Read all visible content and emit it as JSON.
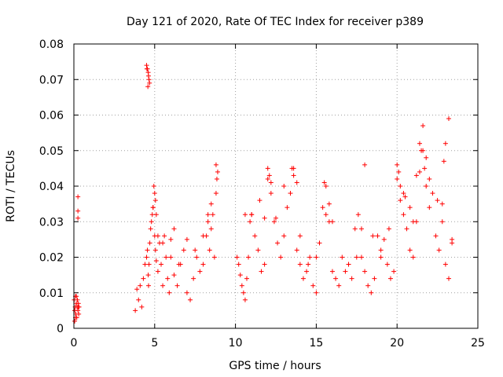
{
  "chart_data": {
    "type": "scatter",
    "title": "Day 121 of 2020, Rate Of TEC Index for receiver p389",
    "xlabel": "GPS time / hours",
    "ylabel": "ROTI / TECUs",
    "xlim": [
      0,
      25
    ],
    "ylim": [
      0,
      0.08
    ],
    "x_ticks": [
      0,
      5,
      10,
      15,
      20,
      25
    ],
    "y_ticks": [
      0,
      0.01,
      0.02,
      0.03,
      0.04,
      0.05,
      0.06,
      0.07,
      0.08
    ],
    "x_tick_labels": [
      "0",
      "5",
      "10",
      "15",
      "20",
      "25"
    ],
    "y_tick_labels": [
      "0",
      "0.01",
      "0.02",
      "0.03",
      "0.04",
      "0.05",
      "0.06",
      "0.07",
      "0.08"
    ],
    "grid": true,
    "marker": "+",
    "color": "#ff0000",
    "series": [
      {
        "x": [
          0.02,
          0.05,
          0.08,
          0.1,
          0.12,
          0.15,
          0.18,
          0.2,
          0.22,
          0.25,
          0.28,
          0.3,
          0.32,
          0.05,
          0.1,
          0.15,
          0.2,
          0.25,
          0.25,
          0.25,
          0.28,
          3.8,
          3.9,
          4.0,
          4.1,
          4.2,
          4.3,
          4.4,
          4.5,
          4.55,
          4.6,
          4.62,
          4.65,
          4.7,
          4.75,
          4.8,
          4.85,
          4.9,
          5.0,
          5.05,
          5.1,
          5.2,
          5.3,
          5.4,
          5.5,
          5.6,
          5.7,
          5.8,
          5.9,
          6.0,
          6.2,
          6.4,
          6.6,
          6.8,
          7.0,
          7.2,
          7.4,
          7.6,
          7.8,
          8.0,
          8.2,
          8.3,
          8.4,
          8.5,
          8.6,
          8.7,
          8.8,
          8.9,
          4.5,
          4.55,
          4.6,
          4.62,
          4.65,
          4.68,
          4.58,
          4.52,
          4.95,
          5.0,
          5.05,
          4.9,
          5.1,
          5.2,
          5.5,
          6.0,
          6.2,
          6.5,
          7.0,
          7.5,
          8.0,
          8.3,
          8.5,
          8.8,
          8.85,
          10.1,
          10.2,
          10.3,
          10.4,
          10.5,
          10.6,
          10.7,
          10.8,
          10.9,
          11.0,
          11.2,
          11.4,
          11.6,
          11.8,
          12.0,
          12.2,
          12.4,
          12.6,
          12.8,
          13.0,
          13.2,
          13.4,
          13.6,
          13.8,
          14.0,
          14.2,
          14.4,
          14.6,
          14.8,
          15.0,
          15.2,
          15.4,
          15.6,
          15.8,
          16.0,
          16.2,
          16.4,
          16.6,
          16.8,
          17.0,
          17.2,
          17.4,
          17.6,
          17.8,
          18.0,
          18.2,
          18.4,
          18.6,
          18.8,
          19.0,
          19.2,
          19.4,
          19.6,
          19.8,
          20.0,
          20.2,
          20.4,
          20.6,
          20.8,
          21.0,
          21.2,
          21.4,
          21.6,
          21.8,
          22.0,
          22.2,
          22.4,
          22.6,
          22.8,
          23.0,
          23.2,
          23.4,
          10.6,
          11.0,
          11.5,
          11.8,
          12.0,
          12.1,
          12.2,
          12.5,
          13.0,
          13.5,
          13.6,
          13.8,
          14.0,
          14.5,
          15.0,
          15.5,
          15.6,
          15.8,
          16.0,
          17.0,
          17.5,
          17.8,
          18.0,
          18.5,
          19.0,
          19.5,
          20.0,
          20.1,
          20.2,
          20.4,
          20.5,
          20.8,
          21.0,
          21.2,
          21.4,
          21.5,
          21.6,
          21.7,
          21.8,
          22.0,
          22.5,
          22.8,
          22.9,
          23.0,
          23.2,
          23.4
        ],
        "y": [
          0.008,
          0.005,
          0.006,
          0.009,
          0.004,
          0.007,
          0.003,
          0.006,
          0.008,
          0.005,
          0.007,
          0.004,
          0.006,
          0.002,
          0.003,
          0.009,
          0.006,
          0.031,
          0.033,
          0.037,
          0.006,
          0.005,
          0.011,
          0.008,
          0.012,
          0.006,
          0.014,
          0.018,
          0.02,
          0.022,
          0.015,
          0.012,
          0.018,
          0.024,
          0.028,
          0.03,
          0.032,
          0.034,
          0.026,
          0.022,
          0.019,
          0.016,
          0.024,
          0.018,
          0.012,
          0.026,
          0.02,
          0.014,
          0.01,
          0.025,
          0.015,
          0.012,
          0.018,
          0.022,
          0.01,
          0.008,
          0.014,
          0.02,
          0.016,
          0.018,
          0.026,
          0.03,
          0.022,
          0.028,
          0.032,
          0.02,
          0.038,
          0.044,
          0.074,
          0.073,
          0.072,
          0.071,
          0.07,
          0.069,
          0.068,
          0.073,
          0.04,
          0.038,
          0.036,
          0.034,
          0.032,
          0.026,
          0.024,
          0.02,
          0.028,
          0.018,
          0.025,
          0.022,
          0.026,
          0.032,
          0.035,
          0.046,
          0.042,
          0.02,
          0.018,
          0.015,
          0.012,
          0.01,
          0.008,
          0.014,
          0.02,
          0.03,
          0.032,
          0.026,
          0.022,
          0.016,
          0.018,
          0.042,
          0.038,
          0.03,
          0.024,
          0.02,
          0.026,
          0.034,
          0.038,
          0.045,
          0.022,
          0.018,
          0.014,
          0.016,
          0.02,
          0.012,
          0.01,
          0.024,
          0.034,
          0.032,
          0.03,
          0.016,
          0.014,
          0.012,
          0.02,
          0.016,
          0.018,
          0.014,
          0.028,
          0.032,
          0.02,
          0.016,
          0.012,
          0.01,
          0.014,
          0.026,
          0.022,
          0.025,
          0.018,
          0.014,
          0.016,
          0.042,
          0.036,
          0.032,
          0.028,
          0.034,
          0.02,
          0.03,
          0.044,
          0.05,
          0.04,
          0.034,
          0.038,
          0.026,
          0.022,
          0.03,
          0.018,
          0.014,
          0.025,
          0.032,
          0.032,
          0.036,
          0.031,
          0.045,
          0.043,
          0.041,
          0.031,
          0.04,
          0.045,
          0.043,
          0.041,
          0.026,
          0.018,
          0.02,
          0.041,
          0.04,
          0.035,
          0.03,
          0.018,
          0.02,
          0.028,
          0.046,
          0.026,
          0.02,
          0.028,
          0.046,
          0.044,
          0.04,
          0.038,
          0.037,
          0.022,
          0.03,
          0.043,
          0.052,
          0.05,
          0.057,
          0.045,
          0.048,
          0.042,
          0.036,
          0.035,
          0.047,
          0.052,
          0.059,
          0.024
        ]
      }
    ]
  }
}
